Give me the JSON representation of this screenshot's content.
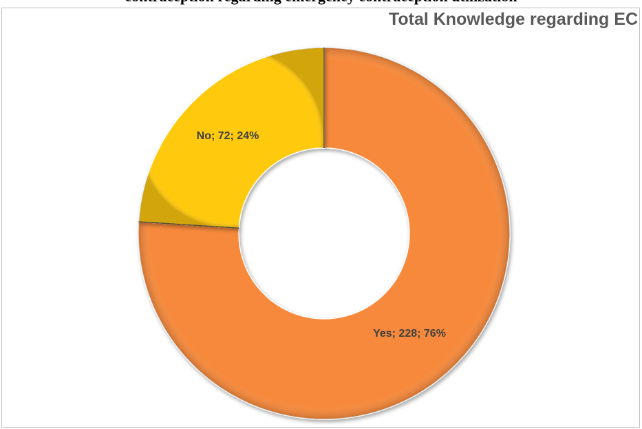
{
  "document": {
    "caption": "contraception regarding emergency contraception utilization"
  },
  "chart_data": {
    "type": "pie",
    "variant": "doughnut",
    "title": "Total Knowledge regarding EC",
    "slices": [
      {
        "label": "Yes",
        "value": 228,
        "percent": 76,
        "color": "#F6893A",
        "data_label": "Yes; 228; 76%"
      },
      {
        "label": "No",
        "value": 72,
        "percent": 24,
        "color": "#FFC90E",
        "data_label": "No; 72; 24%"
      }
    ],
    "legend": "none",
    "start_angle_deg": 0,
    "direction": "clockwise"
  }
}
